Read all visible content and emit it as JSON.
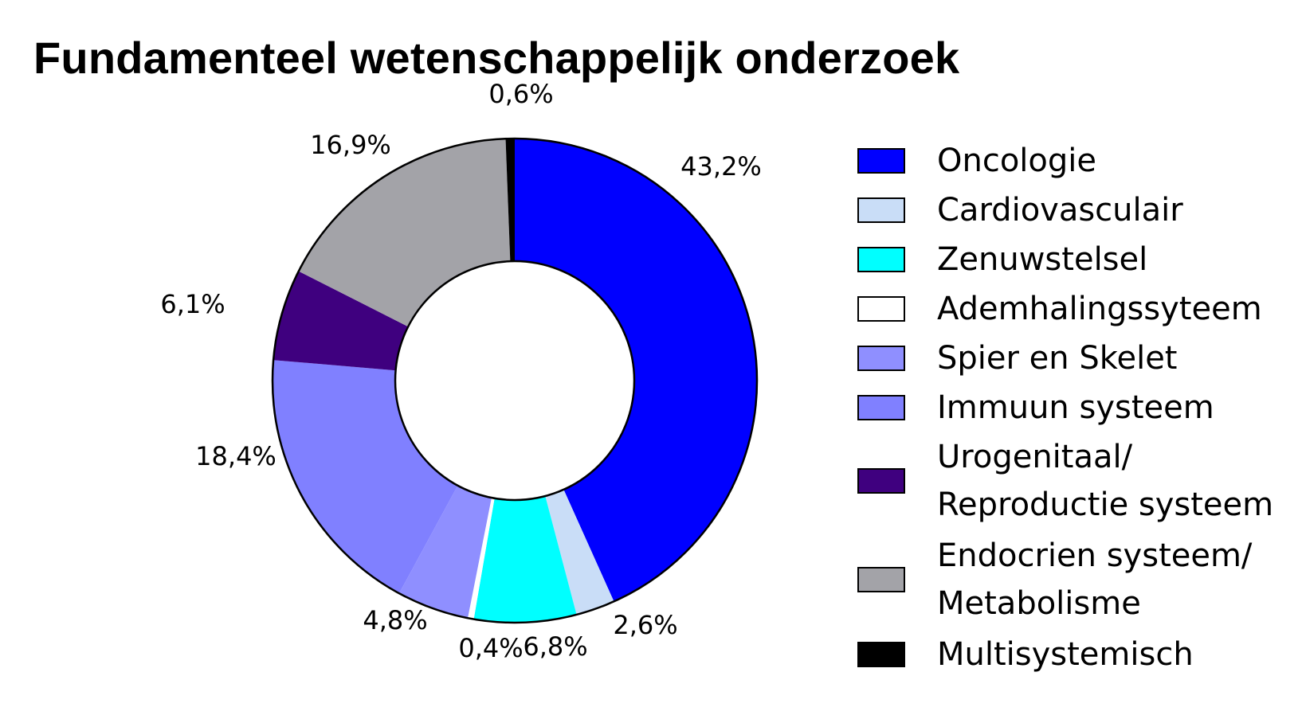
{
  "chart_data": {
    "type": "pie",
    "title": "Fundamenteel wetenschappelijk onderzoek",
    "categories": [
      "Oncologie",
      "Cardiovasculair",
      "Zenuwstelsel",
      "Ademhalingssyteem",
      "Spier en Skelet",
      "Immuun systeem",
      "Urogenitaal/ Reproductie systeem",
      "Endocrien systeem/ Metabolisme",
      "Multisystemisch"
    ],
    "legend_lines": [
      [
        "Oncologie"
      ],
      [
        "Cardiovasculair"
      ],
      [
        "Zenuwstelsel"
      ],
      [
        "Ademhalingssyteem"
      ],
      [
        "Spier en Skelet"
      ],
      [
        "Immuun systeem"
      ],
      [
        "Urogenitaal/",
        "Reproductie systeem"
      ],
      [
        "Endocrien systeem/",
        "Metabolisme"
      ],
      [
        "Multisystemisch"
      ]
    ],
    "values": [
      43.2,
      2.6,
      6.8,
      0.4,
      4.8,
      18.4,
      6.1,
      16.9,
      0.6
    ],
    "labels": [
      "43,2%",
      "2,6%",
      "6,8%",
      "0,4%",
      "4,8%",
      "18,4%",
      "6,1%",
      "16,9%",
      "0,6%"
    ],
    "colors": [
      "#0000ff",
      "#c9ddf7",
      "#00ffff",
      "#ffffff",
      "#8f8fff",
      "#8080ff",
      "#3f007f",
      "#a3a3a8",
      "#000000"
    ],
    "donut": true,
    "start": "12 o'clock",
    "direction": "clockwise",
    "legend_position": "right"
  }
}
